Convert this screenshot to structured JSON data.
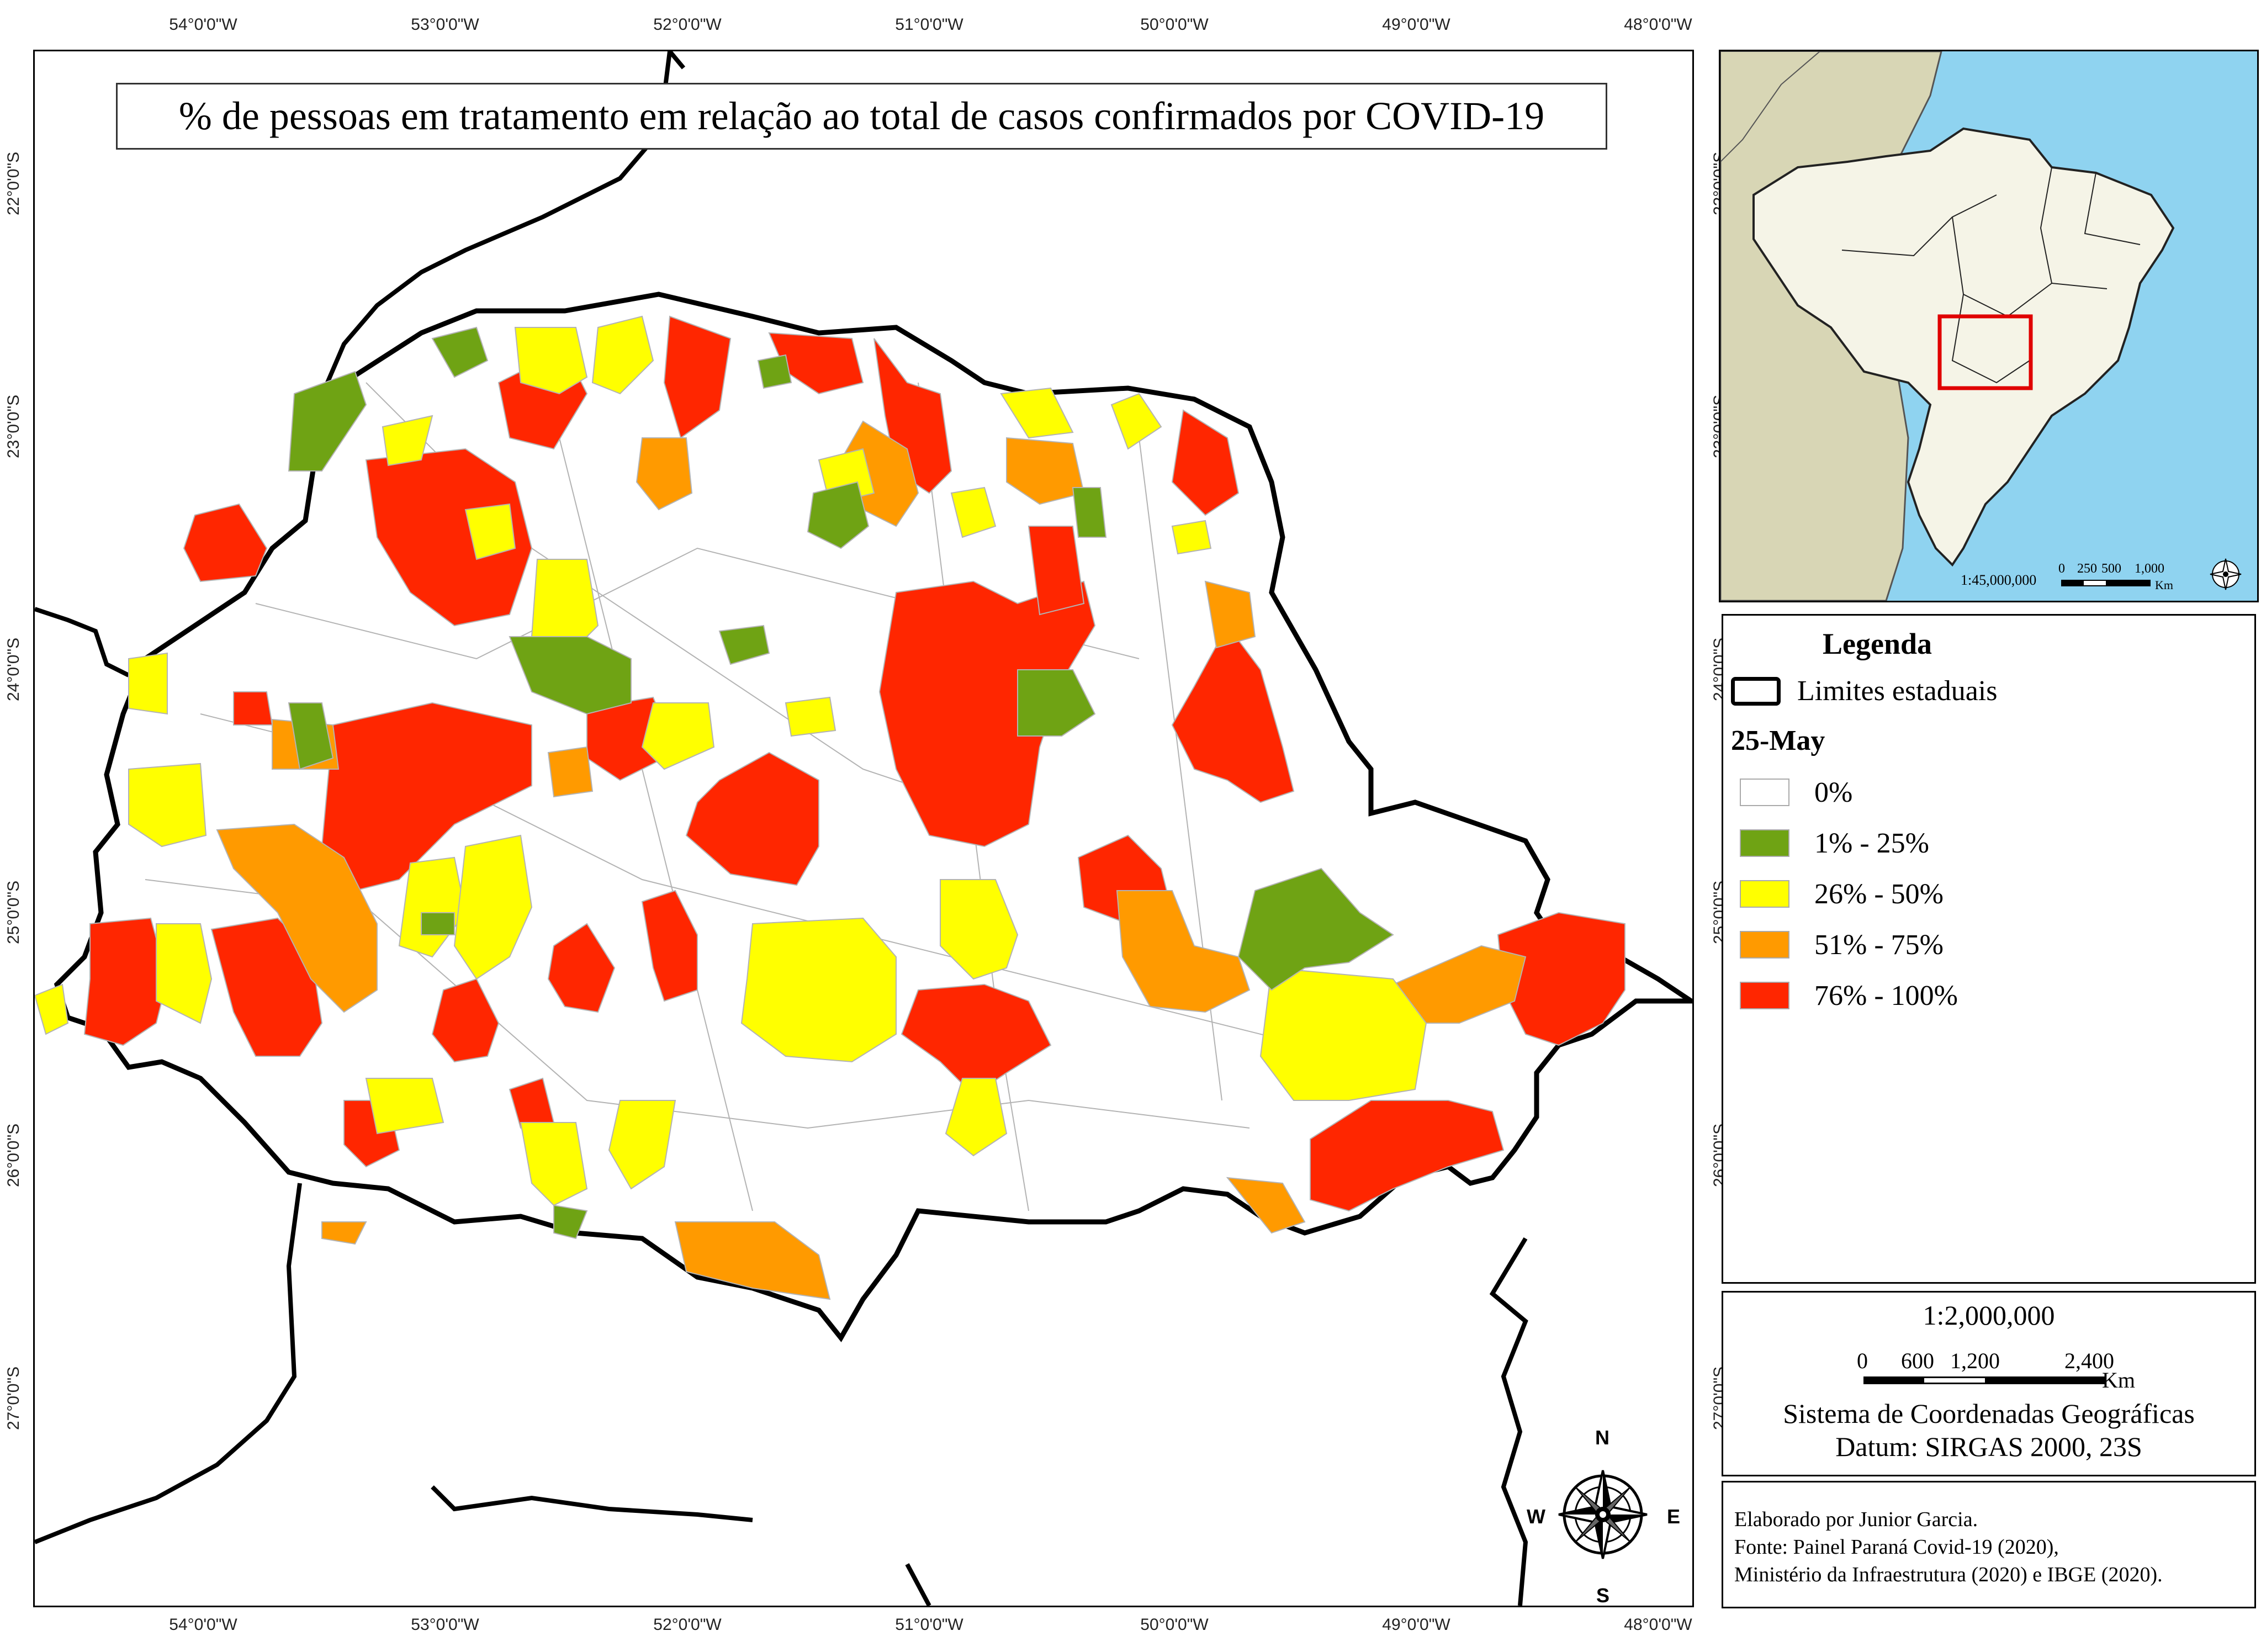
{
  "map": {
    "title": "% de pessoas em tratamento em relação ao total de casos confirmados por COVID-19",
    "lon_ticks": [
      "54°0'0\"W",
      "53°0'0\"W",
      "52°0'0\"W",
      "51°0'0\"W",
      "50°0'0\"W",
      "49°0'0\"W",
      "48°0'0\"W"
    ],
    "lat_ticks": [
      "22°0'0\"S",
      "23°0'0\"S",
      "24°0'0\"S",
      "25°0'0\"S",
      "26°0'0\"S",
      "27°0'0\"S"
    ],
    "north_arrow": {
      "n": "N",
      "s": "S",
      "e": "E",
      "w": "W"
    },
    "colors": {
      "zero": "#ffffff",
      "c1": "#6fa314",
      "c2": "#ffff00",
      "c3": "#ff9a00",
      "c4": "#ff2600",
      "boundary": "#000000",
      "municipal_lines": "#b3b3b3"
    }
  },
  "inset": {
    "scale_ratio": "1:45,000,000",
    "scale_ticks": [
      "0",
      "250",
      "500",
      "1,000"
    ],
    "scale_unit": "Km",
    "colors": {
      "ocean": "#8fd3f0",
      "brazil": "#f5f4e7",
      "neighbors": "#d8d6b5",
      "highlight": "#e00000"
    }
  },
  "legend": {
    "title": "Legenda",
    "state_limits_label": "Limites estaduais",
    "date_label": "25-May",
    "classes": [
      {
        "label": "0%",
        "color": "#ffffff"
      },
      {
        "label": "1% - 25%",
        "color": "#6fa314"
      },
      {
        "label": "26% - 50%",
        "color": "#ffff00"
      },
      {
        "label": "51% - 75%",
        "color": "#ff9a00"
      },
      {
        "label": "76% - 100%",
        "color": "#ff2600"
      }
    ]
  },
  "scale": {
    "ratio": "1:2,000,000",
    "ticks": [
      "0",
      "600",
      "1,200",
      "2,400"
    ],
    "unit": "Km",
    "crs_line1": "Sistema de Coordenadas Geográficas",
    "crs_line2": "Datum: SIRGAS 2000, 23S"
  },
  "credits": {
    "line1": "Elaborado por Junior Garcia.",
    "line2": "Fonte: Painel Paraná Covid-19 (2020),",
    "line3": "Ministério da Infraestrutura (2020) e IBGE (2020)."
  }
}
